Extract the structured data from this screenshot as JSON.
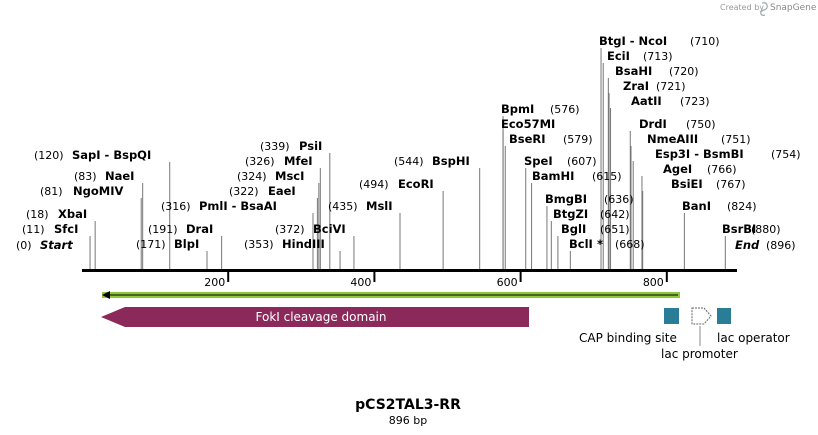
{
  "credit": {
    "prefix": "Created by",
    "brand": "SnapGene"
  },
  "map": {
    "name": "pCS2TAL3-RR",
    "length_label": "896 bp",
    "length": 896,
    "start_label": "Start",
    "end_label": "End",
    "start_pos": "(0)",
    "end_pos": "(896)",
    "ticks": [
      {
        "value": 200,
        "label": "200"
      },
      {
        "value": 400,
        "label": "400"
      },
      {
        "value": 600,
        "label": "600"
      },
      {
        "value": 800,
        "label": "800"
      }
    ],
    "sites": [
      {
        "name": "XbaI",
        "pos": "(18)",
        "bp": 18
      },
      {
        "name": "SfcI",
        "pos": "(11)",
        "bp": 11
      },
      {
        "name": "NgoMIV",
        "pos": "(81)",
        "bp": 81
      },
      {
        "name": "NaeI",
        "pos": "(83)",
        "bp": 83
      },
      {
        "name": "SapI  - BspQI",
        "pos": "(120)",
        "bp": 120
      },
      {
        "name": "BlpI",
        "pos": "(171)",
        "bp": 171
      },
      {
        "name": "DraI",
        "pos": "(191)",
        "bp": 191
      },
      {
        "name": "PmlI  - BsaAI",
        "pos": "(316)",
        "bp": 316
      },
      {
        "name": "EaeI",
        "pos": "(322)",
        "bp": 322
      },
      {
        "name": "MscI",
        "pos": "(324)",
        "bp": 324
      },
      {
        "name": "MfeI",
        "pos": "(326)",
        "bp": 326
      },
      {
        "name": "PsiI",
        "pos": "(339)",
        "bp": 339
      },
      {
        "name": "HindIII",
        "pos": "(353)",
        "bp": 353
      },
      {
        "name": "BciVI",
        "pos": "(372)",
        "bp": 372
      },
      {
        "name": "MslI",
        "pos": "(435)",
        "bp": 435
      },
      {
        "name": "EcoRI",
        "pos": "(494)",
        "bp": 494
      },
      {
        "name": "BspHI",
        "pos": "(544)",
        "bp": 544
      },
      {
        "name": "BpmI",
        "pos": "(576)",
        "bp": 576
      },
      {
        "name": "Eco57MI",
        "pos": "",
        "bp": 576
      },
      {
        "name": "BseRI",
        "pos": "(579)",
        "bp": 579
      },
      {
        "name": "SpeI",
        "pos": "(607)",
        "bp": 607
      },
      {
        "name": "BamHI",
        "pos": "(615)",
        "bp": 615
      },
      {
        "name": "BmgBI",
        "pos": "(636)",
        "bp": 636
      },
      {
        "name": "BtgZI",
        "pos": "(642)",
        "bp": 642
      },
      {
        "name": "BglI",
        "pos": "(651)",
        "bp": 651
      },
      {
        "name": "BclI",
        "pos": "(668)",
        "bp": 668,
        "star": "*"
      },
      {
        "name": "BtgI  - NcoI",
        "pos": "(710)",
        "bp": 710
      },
      {
        "name": "EciI",
        "pos": "(713)",
        "bp": 713
      },
      {
        "name": "BsaHI",
        "pos": "(720)",
        "bp": 720
      },
      {
        "name": "ZraI",
        "pos": "(721)",
        "bp": 721
      },
      {
        "name": "AatII",
        "pos": "(723)",
        "bp": 723
      },
      {
        "name": "DrdI",
        "pos": "(750)",
        "bp": 750
      },
      {
        "name": "NmeAIII",
        "pos": "(751)",
        "bp": 751
      },
      {
        "name": "Esp3I  - BsmBI",
        "pos": "(754)",
        "bp": 754
      },
      {
        "name": "AgeI",
        "pos": "(766)",
        "bp": 766
      },
      {
        "name": "BsiEI",
        "pos": "(767)",
        "bp": 767
      },
      {
        "name": "BanI",
        "pos": "(824)",
        "bp": 824
      },
      {
        "name": "BsrBI",
        "pos": "(880)",
        "bp": 880
      }
    ],
    "features": {
      "fokI": {
        "label": "FokI cleavage domain",
        "color": "#8b2a5a"
      },
      "cap": {
        "label": "CAP binding site",
        "color": "#2a7d96"
      },
      "lacPromoter": {
        "label": "lac promoter"
      },
      "lacOperator": {
        "label": "lac operator",
        "color": "#2a7d96"
      },
      "orf": {
        "color": "#8dc63f"
      }
    }
  }
}
